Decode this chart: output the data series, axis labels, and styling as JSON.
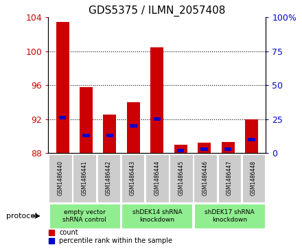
{
  "title": "GDS5375 / ILMN_2057408",
  "samples": [
    "GSM1486440",
    "GSM1486441",
    "GSM1486442",
    "GSM1486443",
    "GSM1486444",
    "GSM1486445",
    "GSM1486446",
    "GSM1486447",
    "GSM1486448"
  ],
  "count_values": [
    103.5,
    95.8,
    92.5,
    94.0,
    100.5,
    89.0,
    89.2,
    89.3,
    92.0
  ],
  "percentile_values": [
    26,
    13,
    13,
    20,
    25,
    2,
    3,
    3,
    10
  ],
  "ylim_left": [
    88,
    104
  ],
  "ylim_right": [
    0,
    100
  ],
  "yticks_left": [
    88,
    92,
    96,
    100,
    104
  ],
  "yticks_right": [
    0,
    25,
    50,
    75,
    100
  ],
  "bar_color": "#cc0000",
  "percentile_color": "#0000cc",
  "bar_width": 0.55,
  "group_info": [
    {
      "label": "empty vector\nshRNA control",
      "start": 0,
      "end": 3
    },
    {
      "label": "shDEK14 shRNA\nknockdown",
      "start": 3,
      "end": 6
    },
    {
      "label": "shDEK17 shRNA\nknockdown",
      "start": 6,
      "end": 9
    }
  ],
  "protocol_label": "protocol",
  "legend_count_label": "count",
  "legend_percentile_label": "percentile rank within the sample",
  "grid_color": "#000000",
  "background_color": "#ffffff",
  "plot_bg_color": "#ffffff",
  "left_axis_color": "#cc0000",
  "right_axis_color": "#0000cc",
  "sample_box_color": "#cccccc",
  "group_box_color": "#90EE90",
  "base_value": 88
}
